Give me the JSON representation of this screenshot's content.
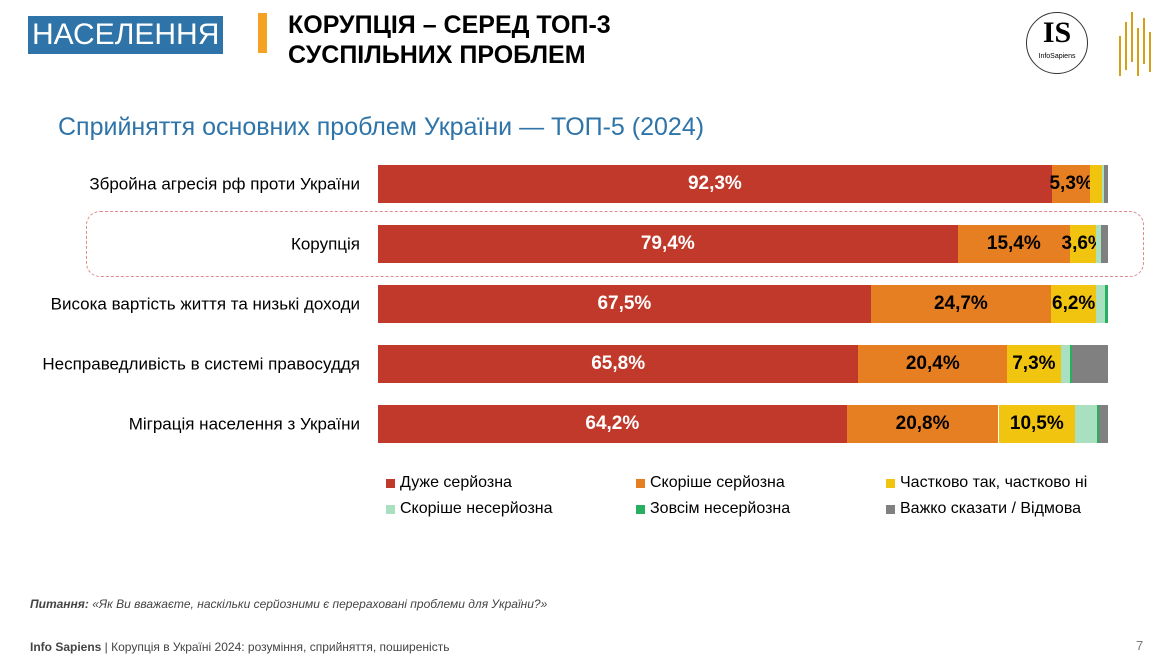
{
  "header": {
    "section": "НАСЕЛЕННЯ",
    "title_line1": "КОРУПЦІЯ – СЕРЕД ТОП-3",
    "title_line2": "СУСПІЛЬНИХ ПРОБЛЕМ",
    "logo_text": "IS",
    "logo_subtext": "InfoSapiens"
  },
  "chart_data": {
    "type": "bar",
    "orientation": "horizontal-stacked-100",
    "title": "Сприйняття основних проблем України — ТОП-5 (2024)",
    "categories": [
      "Збройна агресія рф проти України",
      "Корупція",
      "Висока вартість життя та низькі доходи",
      "Несправедливість в системі правосуддя",
      "Міграція населення з України"
    ],
    "highlighted_category": "Корупція",
    "series": [
      {
        "name": "Дуже серйозна",
        "color": "#c0392b",
        "values": [
          92.3,
          79.4,
          67.5,
          65.8,
          64.2
        ],
        "labels": [
          "92,3%",
          "79,4%",
          "67,5%",
          "65,8%",
          "64,2%"
        ],
        "label_color": "#ffffff"
      },
      {
        "name": "Скоріше серйозна",
        "color": "#e67e22",
        "values": [
          5.3,
          15.4,
          24.7,
          20.4,
          20.8
        ],
        "labels": [
          "5,3%",
          "15,4%",
          "24,7%",
          "20,4%",
          "20,8%"
        ],
        "label_color": "#000000"
      },
      {
        "name": "Частково так, частково ні",
        "color": "#f1c40f",
        "values": [
          1.6,
          3.6,
          6.2,
          7.3,
          10.5
        ],
        "labels": [
          "",
          "3,6%",
          "6,2%",
          "7,3%",
          "10,5%"
        ],
        "label_color": "#000000"
      },
      {
        "name": "Скоріше несерйозна",
        "color": "#a8e0c0",
        "values": [
          0.2,
          0.7,
          1.2,
          1.3,
          3.0
        ],
        "labels": [
          "",
          "",
          "",
          "",
          ""
        ]
      },
      {
        "name": "Зовсім несерйозна",
        "color": "#27ae60",
        "values": [
          0,
          0,
          0.4,
          0.3,
          0.3
        ],
        "labels": [
          "",
          "",
          "",
          "",
          ""
        ]
      },
      {
        "name": "Важко сказати / Відмова",
        "color": "#808080",
        "values": [
          0.6,
          0.9,
          0,
          4.9,
          1.2
        ],
        "labels": [
          "",
          "",
          "",
          "",
          ""
        ]
      }
    ],
    "xlim": [
      0,
      100
    ],
    "legend": "bottom"
  },
  "footer": {
    "question_label": "Питання:",
    "question_text": " «Як Ви вважаєте, наскільки серйозними є перераховані проблеми для України?»",
    "source_brand": "Info Sapiens",
    "source_text": " | Корупція в Україні 2024: розуміння, сприйняття, поширеність",
    "page": "7"
  }
}
